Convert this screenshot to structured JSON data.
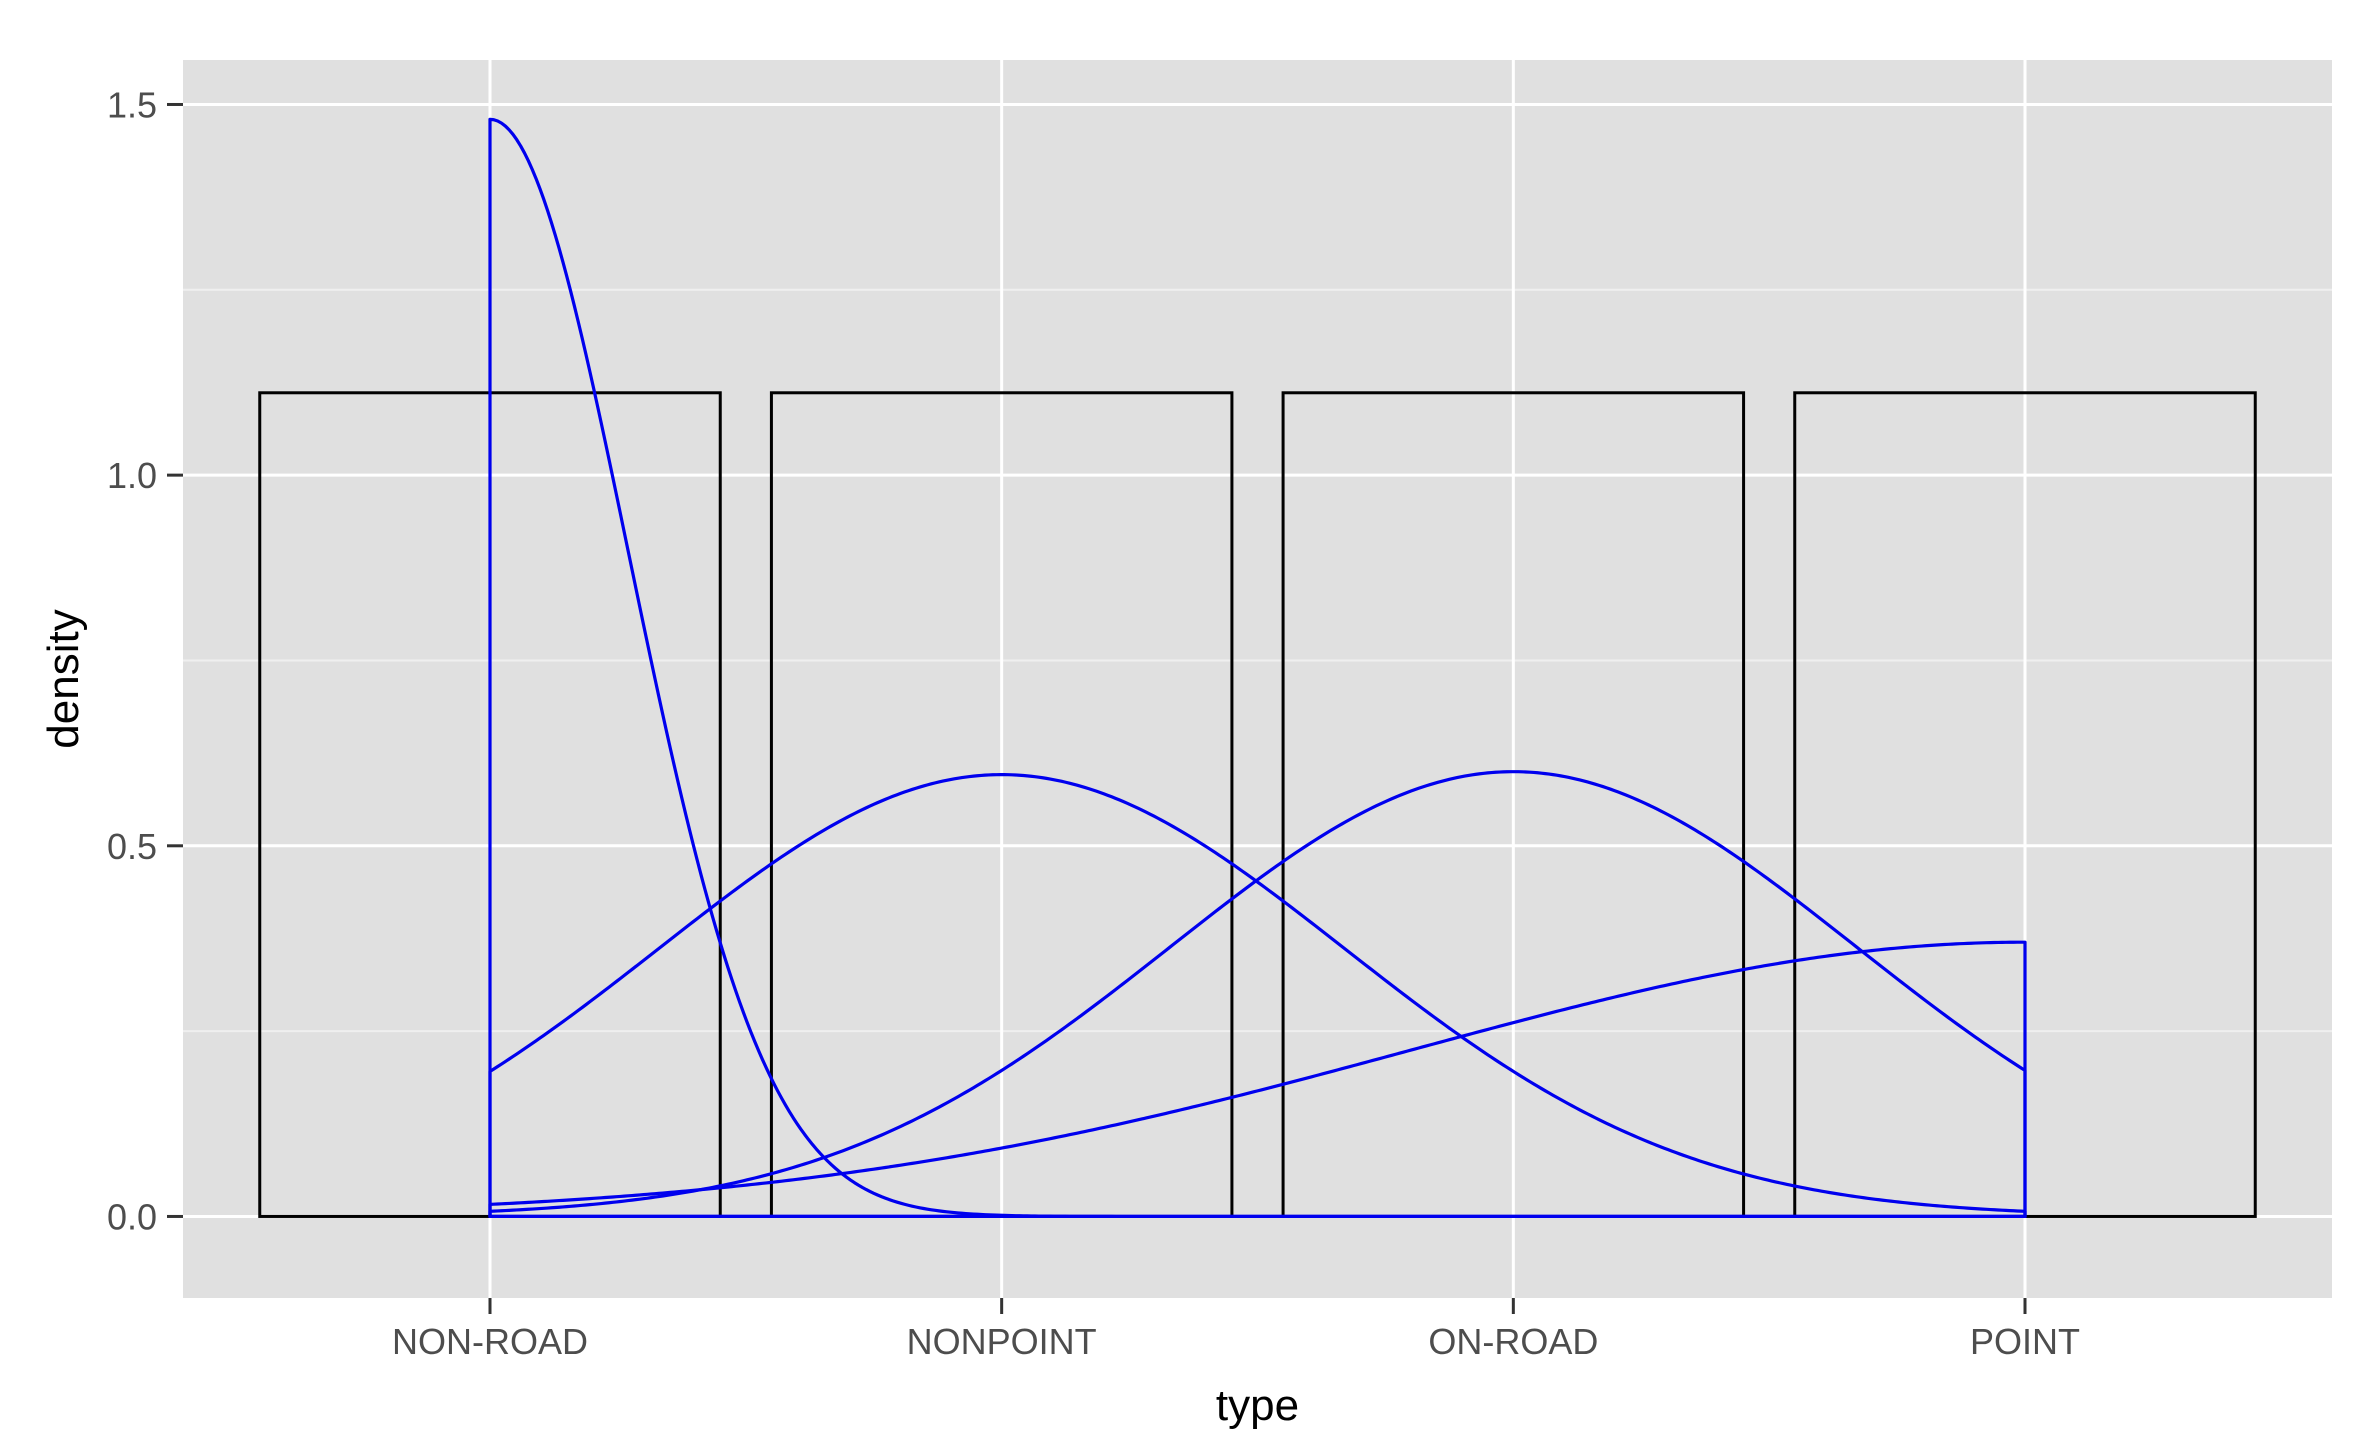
{
  "chart_data": {
    "type": "bar",
    "title": "",
    "xlabel": "type",
    "ylabel": "density",
    "categories": [
      "NON-ROAD",
      "NONPOINT",
      "ON-ROAD",
      "POINT"
    ],
    "bars": {
      "values": [
        1.1111,
        1.1111,
        1.1111,
        1.1111
      ],
      "width": 0.9
    },
    "ylim": [
      -0.11,
      1.56
    ],
    "xlim": [
      0.4,
      4.6
    ],
    "y_ticks": [
      0.0,
      0.5,
      1.0,
      1.5
    ],
    "y_tick_labels": [
      "0.0",
      "0.5",
      "1.0",
      "1.5"
    ],
    "grid": true,
    "legend": "none",
    "density_curves": [
      {
        "x_range": [
          1,
          4
        ],
        "peak_x": 1,
        "peak_y": 1.48,
        "sigma": 0.27,
        "closed_at_ends": true
      },
      {
        "x_range": [
          1,
          4
        ],
        "peak_x": 2,
        "peak_y": 0.596,
        "sigma": 0.67,
        "closed_at_ends": true
      },
      {
        "x_range": [
          1,
          4
        ],
        "peak_x": 3,
        "peak_y": 0.6,
        "sigma": 0.67,
        "closed_at_ends": true
      },
      {
        "x_range": [
          1,
          4
        ],
        "peak_x": 4,
        "peak_y": 0.37,
        "sigma": 1.2,
        "closed_at_ends": true
      }
    ],
    "colors": {
      "panel_background": "#e0e0e0",
      "grid_major": "#ffffff",
      "grid_minor": "#efefef",
      "bar_outline": "#000000",
      "density_line": "#0000ee"
    }
  }
}
